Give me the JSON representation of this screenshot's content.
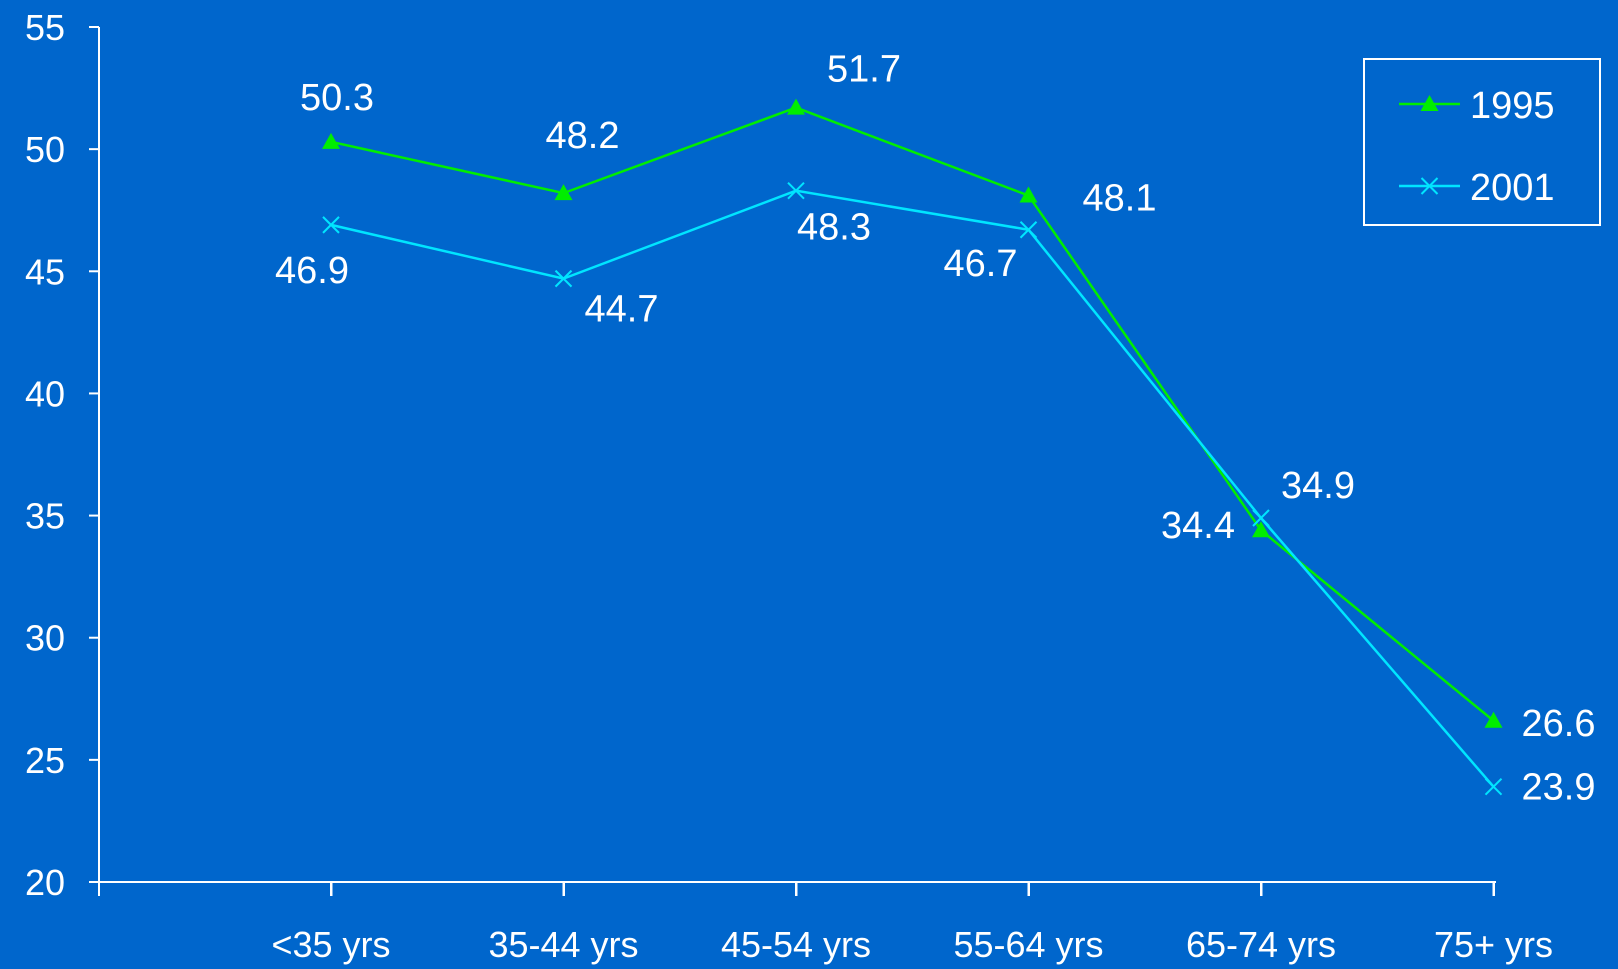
{
  "chart_data": {
    "type": "line",
    "categories": [
      "<35 yrs",
      "35-44 yrs",
      "45-54 yrs",
      "55-64 yrs",
      "65-74 yrs",
      "75+ yrs"
    ],
    "series": [
      {
        "name": "1995",
        "values": [
          50.3,
          48.2,
          51.7,
          48.1,
          34.4,
          26.6
        ],
        "color": "#00EE00",
        "marker": "triangle",
        "labels": [
          "50.3",
          "48.2",
          "51.7",
          "48.1",
          "34.4",
          "26.6"
        ]
      },
      {
        "name": "2001",
        "values": [
          46.9,
          44.7,
          48.3,
          46.7,
          34.9,
          23.9
        ],
        "color": "#00E5FF",
        "marker": "x",
        "labels": [
          "46.9",
          "44.7",
          "48.3",
          "46.7",
          "34.9",
          "23.9"
        ]
      }
    ],
    "ylim": [
      20,
      55
    ],
    "yticks": [
      "20",
      "25",
      "30",
      "35",
      "40",
      "45",
      "50",
      "55"
    ],
    "legend": "top-right",
    "grid": false,
    "background": "#0066CC",
    "axis_color": "#FFFFFF"
  }
}
